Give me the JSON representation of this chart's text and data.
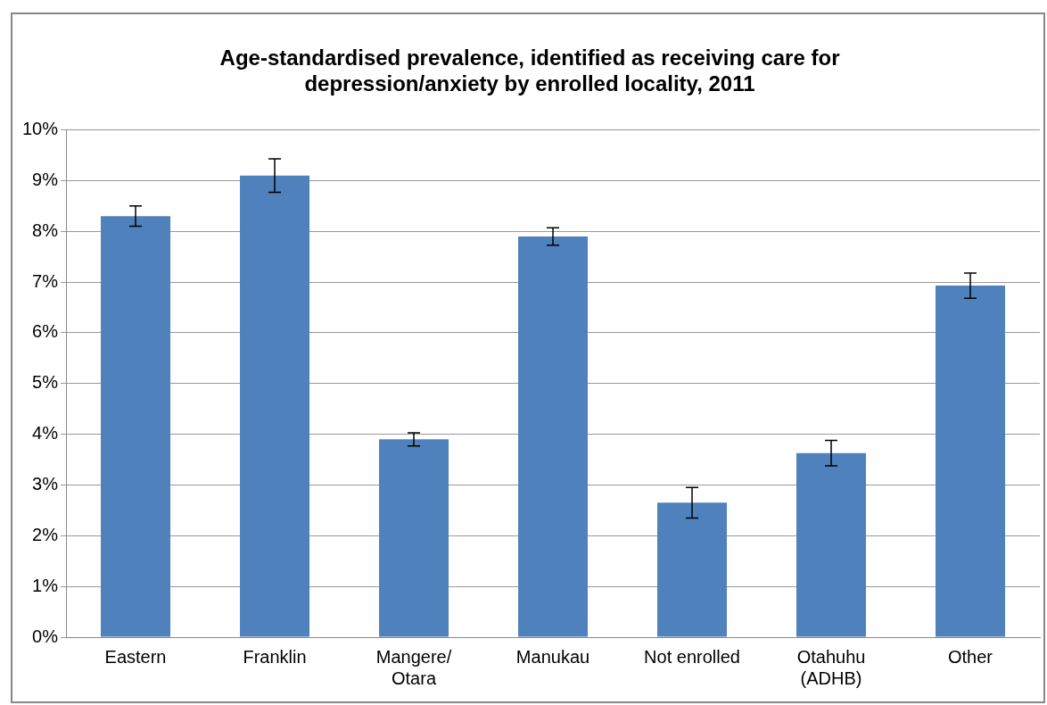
{
  "chart_data": {
    "type": "bar",
    "title": "Age-standardised prevalence, identified as receiving care for\ndepression/anxiety by enrolled locality, 2011",
    "categories": [
      "Eastern",
      "Franklin",
      "Mangere/\nOtara",
      "Manukau",
      "Not enrolled",
      "Otahuhu\n(ADHB)",
      "Other"
    ],
    "values": [
      8.3,
      9.1,
      3.9,
      7.9,
      2.65,
      3.63,
      6.93
    ],
    "errors": [
      0.2,
      0.33,
      0.13,
      0.17,
      0.3,
      0.25,
      0.25
    ],
    "color": "#4f81bd",
    "ylim": [
      0,
      10
    ],
    "yticks": [
      {
        "value": 0,
        "label": "0%"
      },
      {
        "value": 1,
        "label": "1%"
      },
      {
        "value": 2,
        "label": "2%"
      },
      {
        "value": 3,
        "label": "3%"
      },
      {
        "value": 4,
        "label": "4%"
      },
      {
        "value": 5,
        "label": "5%"
      },
      {
        "value": 6,
        "label": "6%"
      },
      {
        "value": 7,
        "label": "7%"
      },
      {
        "value": 8,
        "label": "8%"
      },
      {
        "value": 9,
        "label": "9%"
      },
      {
        "value": 10,
        "label": "10%"
      }
    ],
    "grid": "y",
    "legend": false
  }
}
